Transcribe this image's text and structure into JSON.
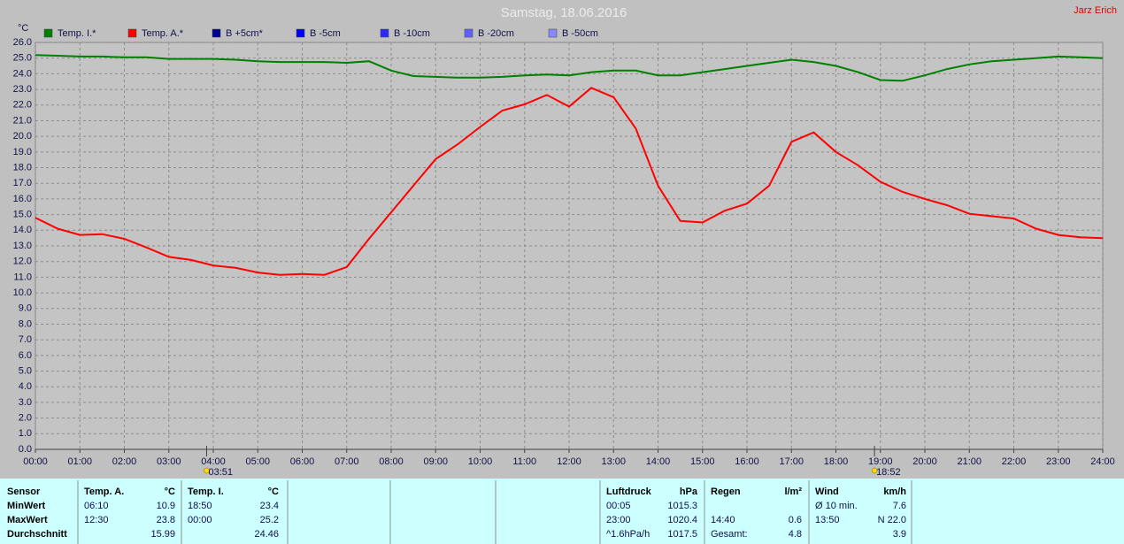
{
  "header": {
    "corner": "Jarz Erich"
  },
  "chart_data": {
    "type": "line",
    "title": "Samstag, 18.06.2016",
    "y_label": "°C",
    "x": [
      0,
      0.5,
      1,
      1.5,
      2,
      2.5,
      3,
      3.5,
      4,
      4.5,
      5,
      5.5,
      6,
      6.5,
      7,
      7.5,
      8,
      8.5,
      9,
      9.5,
      10,
      10.5,
      11,
      11.5,
      12,
      12.5,
      13,
      13.5,
      14,
      14.5,
      15,
      15.5,
      16,
      16.5,
      17,
      17.5,
      18,
      18.5,
      19,
      19.5,
      20,
      20.5,
      21,
      21.5,
      22,
      22.5,
      23,
      23.5,
      24
    ],
    "series": [
      {
        "name": "Temp. I.*",
        "color": "#008000",
        "values": [
          25.2,
          25.15,
          25.1,
          25.1,
          25.05,
          25.05,
          24.95,
          24.95,
          24.95,
          24.9,
          24.8,
          24.75,
          24.75,
          24.75,
          24.7,
          24.8,
          24.2,
          23.85,
          23.8,
          23.75,
          23.75,
          23.8,
          23.9,
          23.95,
          23.9,
          24.1,
          24.2,
          24.2,
          23.9,
          23.9,
          24.1,
          24.3,
          24.5,
          24.7,
          24.9,
          24.75,
          24.5,
          24.1,
          23.6,
          23.55,
          23.9,
          24.3,
          24.6,
          24.8,
          24.9,
          25.0,
          25.1,
          25.05,
          25.0
        ]
      },
      {
        "name": "Temp. A.*",
        "color": "#ff0000",
        "values": [
          14.8,
          14.1,
          13.7,
          13.75,
          13.45,
          12.9,
          12.3,
          12.1,
          11.75,
          11.6,
          11.3,
          11.15,
          11.2,
          11.15,
          11.65,
          13.45,
          15.15,
          16.85,
          18.55,
          19.5,
          20.6,
          21.65,
          22.05,
          22.65,
          21.9,
          23.1,
          22.5,
          20.5,
          16.85,
          14.6,
          14.5,
          15.25,
          15.7,
          16.85,
          19.65,
          20.25,
          19.0,
          18.15,
          17.1,
          16.45,
          16.0,
          15.6,
          15.05,
          14.9,
          14.75,
          14.1,
          13.7,
          13.55,
          13.5
        ]
      }
    ],
    "legend_only": [
      {
        "name": "B +5cm*",
        "color": "#000090"
      },
      {
        "name": "B -5cm",
        "color": "#0000ff"
      },
      {
        "name": "B -10cm",
        "color": "#2a2aff"
      },
      {
        "name": "B -20cm",
        "color": "#6060ff"
      },
      {
        "name": "B -50cm",
        "color": "#8888ff"
      }
    ],
    "annotations": [
      {
        "x": 3.85,
        "label": "03:51"
      },
      {
        "x": 18.867,
        "label": "18:52"
      }
    ],
    "xlim": [
      0,
      24
    ],
    "xticks": [
      {
        "value": 0,
        "label": "00:00"
      },
      {
        "value": 1,
        "label": "01:00"
      },
      {
        "value": 2,
        "label": "02:00"
      },
      {
        "value": 3,
        "label": "03:00"
      },
      {
        "value": 4,
        "label": "04:00"
      },
      {
        "value": 5,
        "label": "05:00"
      },
      {
        "value": 6,
        "label": "06:00"
      },
      {
        "value": 7,
        "label": "07:00"
      },
      {
        "value": 8,
        "label": "08:00"
      },
      {
        "value": 9,
        "label": "09:00"
      },
      {
        "value": 10,
        "label": "10:00"
      },
      {
        "value": 11,
        "label": "11:00"
      },
      {
        "value": 12,
        "label": "12:00"
      },
      {
        "value": 13,
        "label": "13:00"
      },
      {
        "value": 14,
        "label": "14:00"
      },
      {
        "value": 15,
        "label": "15:00"
      },
      {
        "value": 16,
        "label": "16:00"
      },
      {
        "value": 17,
        "label": "17:00"
      },
      {
        "value": 18,
        "label": "18:00"
      },
      {
        "value": 19,
        "label": "19:00"
      },
      {
        "value": 20,
        "label": "20:00"
      },
      {
        "value": 21,
        "label": "21:00"
      },
      {
        "value": 22,
        "label": "22:00"
      },
      {
        "value": 23,
        "label": "23:00"
      },
      {
        "value": 24,
        "label": "24:00"
      }
    ],
    "ylim": [
      0,
      26
    ],
    "yticks": [
      {
        "value": 0,
        "label": "0.0"
      },
      {
        "value": 1,
        "label": "1.0"
      },
      {
        "value": 2,
        "label": "2.0"
      },
      {
        "value": 3,
        "label": "3.0"
      },
      {
        "value": 4,
        "label": "4.0"
      },
      {
        "value": 5,
        "label": "5.0"
      },
      {
        "value": 6,
        "label": "6.0"
      },
      {
        "value": 7,
        "label": "7.0"
      },
      {
        "value": 8,
        "label": "8.0"
      },
      {
        "value": 9,
        "label": "9.0"
      },
      {
        "value": 10,
        "label": "10.0"
      },
      {
        "value": 11,
        "label": "11.0"
      },
      {
        "value": 12,
        "label": "12.0"
      },
      {
        "value": 13,
        "label": "13.0"
      },
      {
        "value": 14,
        "label": "14.0"
      },
      {
        "value": 15,
        "label": "15.0"
      },
      {
        "value": 16,
        "label": "16.0"
      },
      {
        "value": 17,
        "label": "17.0"
      },
      {
        "value": 18,
        "label": "18.0"
      },
      {
        "value": 19,
        "label": "19.0"
      },
      {
        "value": 20,
        "label": "20.0"
      },
      {
        "value": 21,
        "label": "21.0"
      },
      {
        "value": 22,
        "label": "22.0"
      },
      {
        "value": 23,
        "label": "23.0"
      },
      {
        "value": 24,
        "label": "24.0"
      },
      {
        "value": 25,
        "label": "25.0"
      },
      {
        "value": 26,
        "label": "26.0"
      }
    ],
    "grid": true
  },
  "stats": {
    "row_labels": [
      "Sensor",
      "MinWert",
      "MaxWert",
      "Durchschnitt"
    ],
    "groups": [
      {
        "header": "Temp. A.",
        "unit": "°C",
        "rows": [
          [
            "06:10",
            "10.9"
          ],
          [
            "12:30",
            "23.8"
          ],
          [
            null,
            "15.99"
          ]
        ]
      },
      {
        "header": "Temp. I.",
        "unit": "°C",
        "rows": [
          [
            "18:50",
            "23.4"
          ],
          [
            "00:00",
            "25.2"
          ],
          [
            null,
            "24.46"
          ]
        ]
      },
      {
        "header": "Luftdruck",
        "unit": "hPa",
        "rows": [
          [
            "00:05",
            "1015.3"
          ],
          [
            "23:00",
            "1020.4"
          ],
          [
            "^1.6hPa/h",
            "1017.5"
          ]
        ]
      },
      {
        "header": "Regen",
        "unit": "l/m²",
        "rows": [
          [
            null,
            null
          ],
          [
            "14:40",
            "0.6"
          ],
          [
            "Gesamt:",
            "4.8"
          ]
        ]
      },
      {
        "header": "Wind",
        "unit": "km/h",
        "rows": [
          [
            "Ø 10 min.",
            "7.6"
          ],
          [
            "13:50",
            "N 22.0"
          ],
          [
            null,
            "3.9"
          ]
        ]
      }
    ]
  }
}
